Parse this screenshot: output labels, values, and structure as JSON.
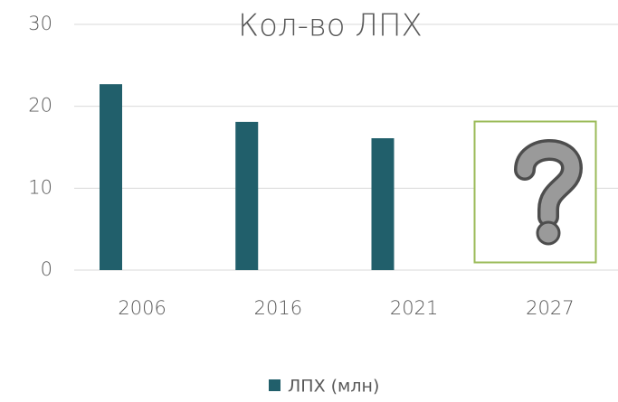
{
  "chart_data": {
    "type": "bar",
    "title": "Кол-во ЛПХ",
    "categories": [
      "2006",
      "2016",
      "2021",
      "2027"
    ],
    "series": [
      {
        "name": "ЛПХ (млн)",
        "color": "#215f6b",
        "values": [
          22.7,
          18.1,
          16.1,
          null
        ]
      }
    ],
    "ylim": [
      0,
      30
    ],
    "yticks": [
      0,
      10,
      20,
      30
    ],
    "grid": true,
    "legend": "bottom"
  }
}
